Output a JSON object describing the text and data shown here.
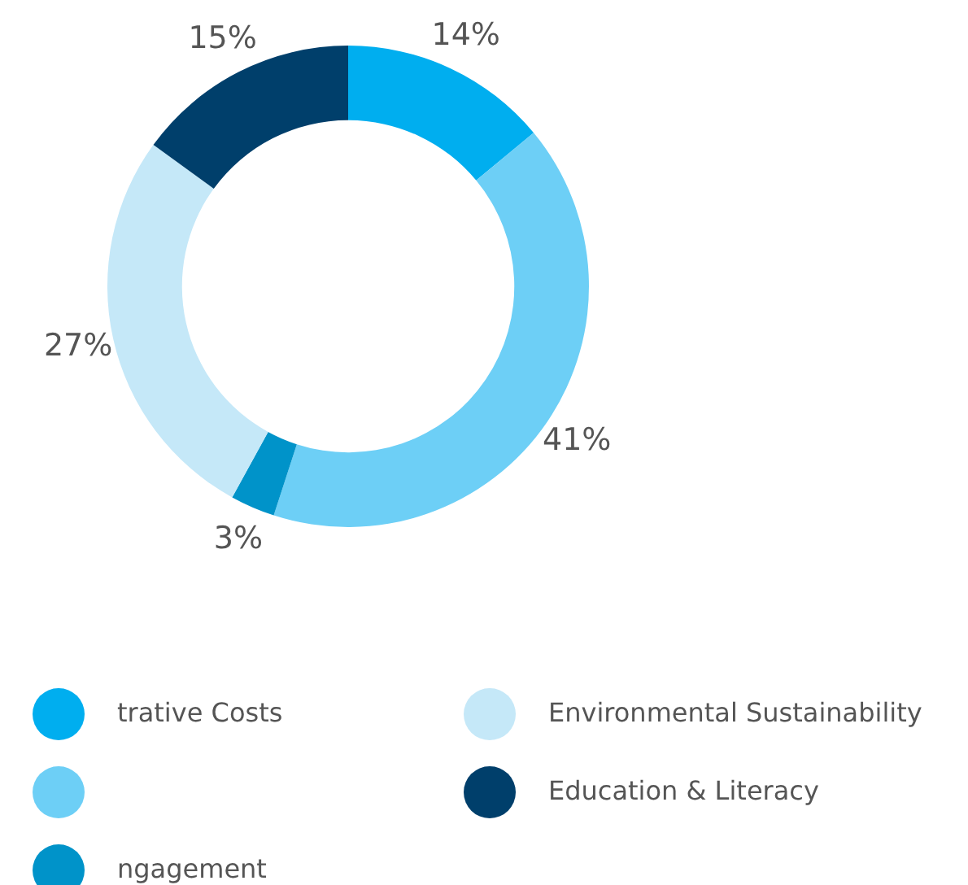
{
  "chart_data": {
    "type": "donut",
    "categories": [
      "trative Costs",
      null,
      "ngagement",
      "Environmental Sustainability",
      "Education & Literacy"
    ],
    "values": [
      14,
      41,
      3,
      27,
      15
    ],
    "colors": [
      "#00aeef",
      "#6dcff6",
      "#0093c9",
      "#c5e8f8",
      "#003f6b"
    ],
    "value_labels": [
      "14%",
      "41%",
      "3%",
      "27%",
      "15%"
    ],
    "legend": "bottom"
  }
}
